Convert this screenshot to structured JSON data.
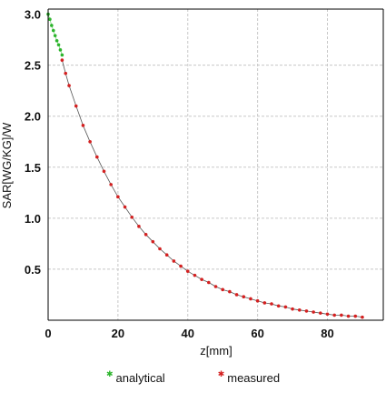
{
  "chart_data": {
    "type": "scatter",
    "xlabel": "z[mm]",
    "ylabel": "SAR[WG/KG]/W",
    "xlim": [
      0,
      96
    ],
    "ylim": [
      0,
      3.05
    ],
    "x_ticks": [
      "0",
      "20",
      "40",
      "60",
      "80"
    ],
    "y_ticks": [
      "0.5",
      "1.0",
      "1.5",
      "2.0",
      "2.5",
      "3.0"
    ],
    "grid": true,
    "legend_position": "bottom",
    "series": [
      {
        "name": "analytical",
        "color": "#2db52d",
        "marker": "dot",
        "x": [
          0,
          0.5,
          1,
          1.5,
          2,
          2.5,
          3,
          3.5,
          4
        ],
        "y": [
          3.0,
          2.95,
          2.89,
          2.84,
          2.79,
          2.74,
          2.7,
          2.65,
          2.6
        ]
      },
      {
        "name": "measured",
        "color": "#d42020",
        "marker": "dot",
        "x": [
          4,
          5,
          6,
          8,
          10,
          12,
          14,
          16,
          18,
          20,
          22,
          24,
          26,
          28,
          30,
          32,
          34,
          36,
          38,
          40,
          42,
          44,
          46,
          48,
          50,
          52,
          54,
          56,
          58,
          60,
          62,
          64,
          66,
          68,
          70,
          72,
          74,
          76,
          78,
          80,
          82,
          84,
          86,
          88,
          90
        ],
        "y": [
          2.55,
          2.42,
          2.3,
          2.1,
          1.91,
          1.75,
          1.6,
          1.46,
          1.33,
          1.21,
          1.11,
          1.01,
          0.92,
          0.84,
          0.77,
          0.7,
          0.64,
          0.58,
          0.53,
          0.48,
          0.44,
          0.4,
          0.37,
          0.33,
          0.3,
          0.28,
          0.25,
          0.23,
          0.21,
          0.19,
          0.17,
          0.16,
          0.14,
          0.13,
          0.11,
          0.1,
          0.09,
          0.08,
          0.07,
          0.06,
          0.05,
          0.05,
          0.04,
          0.04,
          0.03
        ]
      }
    ]
  }
}
